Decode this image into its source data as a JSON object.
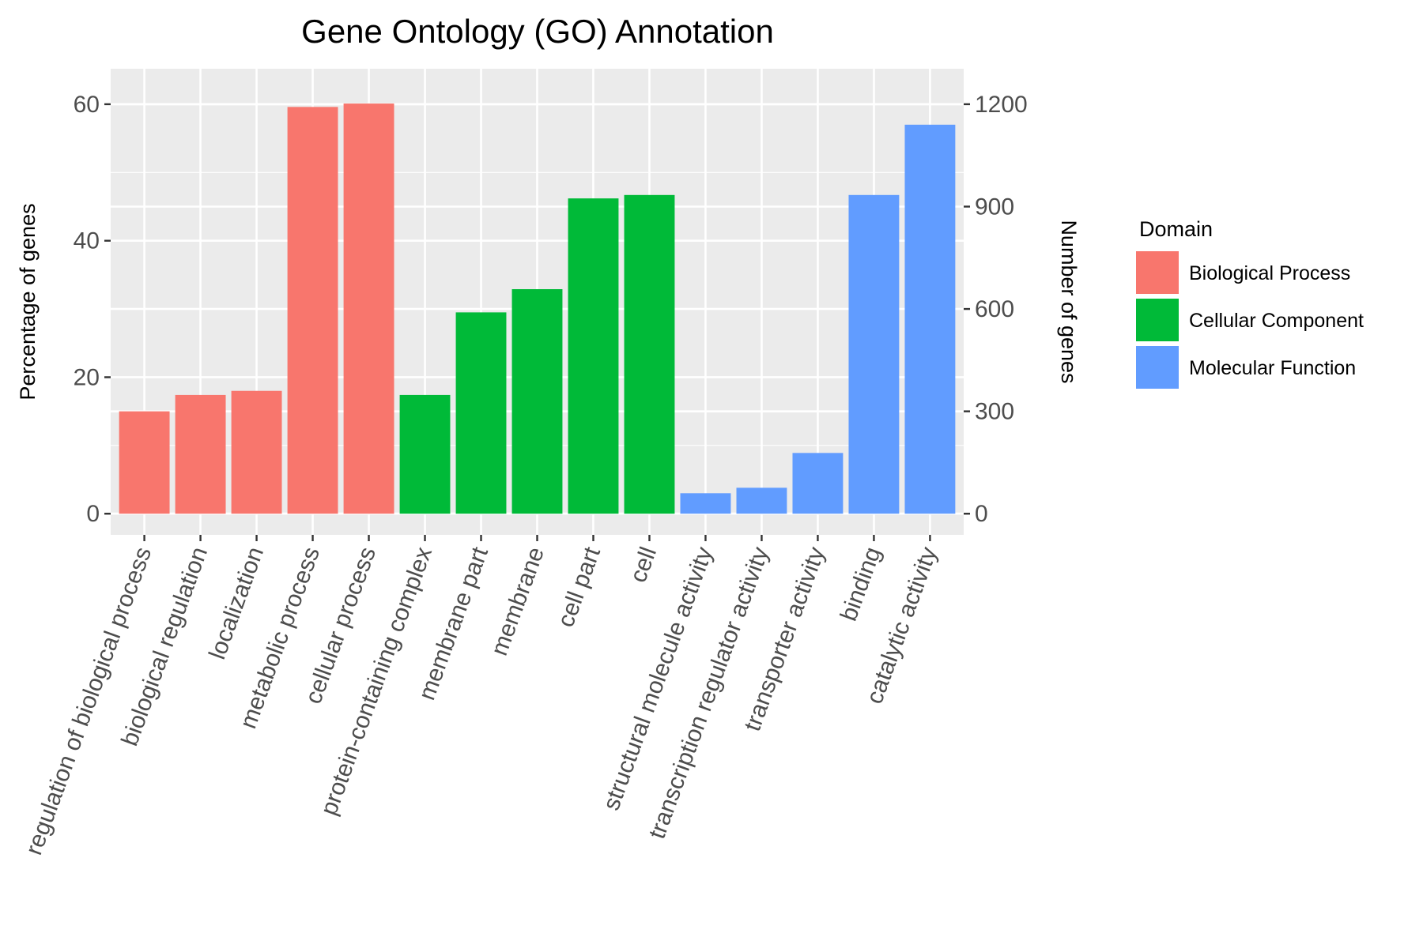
{
  "chart_data": {
    "type": "bar",
    "title": "Gene Ontology (GO) Annotation",
    "ylabel": "Percentage of genes",
    "y2label": "Number of genes",
    "xlabel": "",
    "ylim": [
      -3.1,
      65.2
    ],
    "yticks": [
      0,
      20,
      40,
      60
    ],
    "y2lim": [
      -62,
      1304
    ],
    "y2ticks": [
      0,
      300,
      600,
      900,
      1200
    ],
    "legend": {
      "title": "Domain",
      "position": "right",
      "entries": [
        {
          "name": "Biological Process",
          "color": "#F8766D"
        },
        {
          "name": "Cellular Component",
          "color": "#00BA38"
        },
        {
          "name": "Molecular Function",
          "color": "#619CFF"
        }
      ]
    },
    "categories": [
      "regulation of biological process",
      "biological regulation",
      "localization",
      "metabolic process",
      "cellular process",
      "protein-containing complex",
      "membrane part",
      "membrane",
      "cell part",
      "cell",
      "structural molecule activity",
      "transcription regulator activity",
      "transporter activity",
      "binding",
      "catalytic activity"
    ],
    "domains": [
      "Biological Process",
      "Biological Process",
      "Biological Process",
      "Biological Process",
      "Biological Process",
      "Cellular Component",
      "Cellular Component",
      "Cellular Component",
      "Cellular Component",
      "Cellular Component",
      "Molecular Function",
      "Molecular Function",
      "Molecular Function",
      "Molecular Function",
      "Molecular Function"
    ],
    "values": [
      15.0,
      17.4,
      18.0,
      59.6,
      60.1,
      17.4,
      29.5,
      32.9,
      46.2,
      46.7,
      3.0,
      3.8,
      8.9,
      46.7,
      57.0
    ]
  }
}
